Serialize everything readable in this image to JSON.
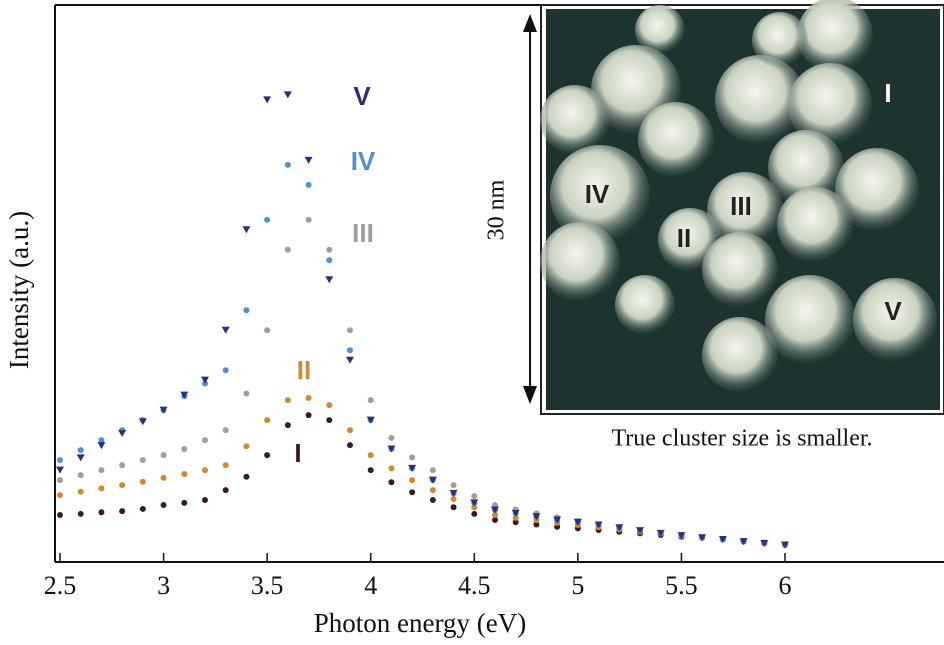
{
  "chart_data": {
    "type": "scatter",
    "x_label": "Photon energy (eV)",
    "y_label": "Intensity (a.u.)",
    "xlim": [
      2.5,
      6
    ],
    "xticks": [
      2.5,
      3,
      3.5,
      4,
      4.5,
      5,
      5.5,
      6
    ],
    "ylim": [
      0,
      100
    ],
    "x": [
      2.5,
      2.6,
      2.7,
      2.8,
      2.9,
      3.0,
      3.1,
      3.2,
      3.3,
      3.4,
      3.5,
      3.6,
      3.7,
      3.8,
      3.9,
      4.0,
      4.1,
      4.2,
      4.3,
      4.4,
      4.5,
      4.6,
      4.7,
      4.8,
      4.9,
      5.0,
      5.1,
      5.2,
      5.3,
      5.4,
      5.5,
      5.6,
      5.7,
      5.8,
      5.9,
      6.0
    ],
    "series": [
      {
        "name": "I",
        "color": "#3a1a24",
        "values": [
          8.1,
          8.3,
          8.6,
          8.8,
          9.2,
          9.9,
          10.3,
          10.8,
          12.6,
          15,
          18.9,
          24.3,
          26.1,
          25.2,
          20.7,
          16.2,
          14,
          12.2,
          10.8,
          9.5,
          8.3,
          7.2,
          6.8,
          6.4,
          6,
          5.7,
          5.4,
          5.1,
          4.8,
          4.5,
          4.2,
          4,
          3.7,
          3.4,
          3.1,
          2.7
        ]
      },
      {
        "name": "II",
        "color": "#d4882e",
        "values": [
          11.7,
          12.3,
          12.9,
          13.5,
          14.1,
          14.8,
          15.5,
          16.2,
          17.1,
          20.5,
          25.2,
          28.8,
          29.2,
          27.9,
          23.4,
          18.9,
          16.5,
          14.4,
          12.6,
          11,
          9.5,
          8.1,
          7.6,
          7.2,
          6.7,
          6.3,
          5.9,
          5.5,
          5.1,
          4.8,
          4.4,
          4,
          3.7,
          3.3,
          3,
          2.7
        ]
      },
      {
        "name": "III",
        "color": "#a39c9c",
        "values": [
          14.4,
          15.3,
          16.2,
          17.1,
          18,
          18.9,
          20,
          21.6,
          23.4,
          30,
          41.4,
          55.9,
          61.3,
          55.9,
          41.4,
          28.8,
          22,
          18.5,
          16.2,
          13.5,
          11.5,
          9.9,
          9.1,
          8.4,
          7.7,
          7,
          6.3,
          5.8,
          5.3,
          4.8,
          4.4,
          4,
          3.7,
          3.3,
          3,
          2.7
        ]
      },
      {
        "name": "IV",
        "color": "#4f8fd6",
        "values": [
          18,
          19.8,
          21.6,
          23.4,
          25.2,
          27,
          29.5,
          31.8,
          34.2,
          45,
          61.3,
          71.2,
          67.6,
          54,
          37.8,
          25.2,
          20,
          16.5,
          14.4,
          12,
          10.3,
          9,
          8.4,
          7.8,
          7.2,
          6.8,
          6.3,
          5.8,
          5.3,
          4.8,
          4.4,
          4,
          3.7,
          3.3,
          3,
          2.7
        ]
      },
      {
        "name": "V",
        "color": "#2e2e7a",
        "marker": "triangle",
        "values": [
          16.2,
          18.4,
          20.6,
          22.8,
          24.9,
          27,
          29.7,
          32.4,
          41.4,
          59.5,
          82.9,
          83.8,
          72,
          50.5,
          36,
          25.2,
          20,
          16.5,
          14.4,
          12,
          10.3,
          9,
          8.4,
          7.8,
          7.2,
          6.8,
          6.3,
          5.8,
          5.3,
          4.8,
          4.4,
          4,
          3.7,
          3.3,
          3,
          2.7
        ]
      }
    ],
    "inset": {
      "scale_label": "30 nm",
      "caption": "True cluster size is smaller.",
      "labels": [
        "I",
        "II",
        "III",
        "IV",
        "V"
      ]
    }
  }
}
